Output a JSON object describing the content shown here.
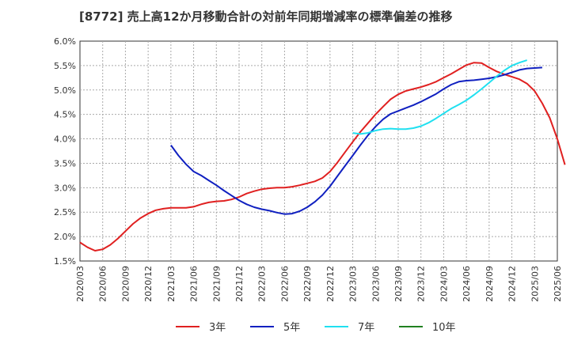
{
  "chart_data": {
    "type": "line",
    "title": "[8772]  売上高12か月移動合計の対前年同期増減率の標準偏差の推移",
    "xlabel": "",
    "ylabel": "",
    "ylim": [
      1.5,
      6.0
    ],
    "yticks": [
      "6.0%",
      "5.5%",
      "5.0%",
      "4.5%",
      "4.0%",
      "3.5%",
      "3.0%",
      "2.5%",
      "2.0%",
      "1.5%"
    ],
    "xticks": [
      "2020/03",
      "2020/06",
      "2020/09",
      "2020/12",
      "2021/03",
      "2021/06",
      "2021/09",
      "2021/12",
      "2022/03",
      "2022/06",
      "2022/09",
      "2022/12",
      "2023/03",
      "2023/06",
      "2023/09",
      "2023/12",
      "2024/03",
      "2024/06",
      "2024/09",
      "2024/12",
      "2025/03",
      "2025/06"
    ],
    "grid": true,
    "legend_position": "bottom",
    "series": [
      {
        "name": "3年",
        "color": "#e02020",
        "values": [
          1.88,
          1.78,
          1.71,
          1.74,
          1.83,
          1.96,
          2.11,
          2.26,
          2.38,
          2.47,
          2.54,
          2.57,
          2.59,
          2.59,
          2.59,
          2.61,
          2.66,
          2.7,
          2.72,
          2.73,
          2.76,
          2.81,
          2.88,
          2.93,
          2.97,
          2.99,
          3.0,
          3.0,
          3.02,
          3.05,
          3.09,
          3.13,
          3.2,
          3.33,
          3.52,
          3.73,
          3.94,
          4.14,
          4.32,
          4.5,
          4.66,
          4.81,
          4.91,
          4.98,
          5.02,
          5.06,
          5.11,
          5.17,
          5.25,
          5.33,
          5.42,
          5.51,
          5.56,
          5.55,
          5.46,
          5.38,
          5.32,
          5.27,
          5.22,
          5.13,
          4.98,
          4.73,
          4.43,
          4.0,
          3.47
        ],
        "start": "2020/03"
      },
      {
        "name": "5年",
        "color": "#1020c0",
        "values": [
          3.87,
          3.66,
          3.48,
          3.33,
          3.25,
          3.15,
          3.05,
          2.94,
          2.84,
          2.74,
          2.66,
          2.6,
          2.56,
          2.53,
          2.49,
          2.46,
          2.47,
          2.52,
          2.6,
          2.71,
          2.85,
          3.03,
          3.24,
          3.45,
          3.66,
          3.87,
          4.07,
          4.25,
          4.4,
          4.51,
          4.57,
          4.63,
          4.69,
          4.76,
          4.84,
          4.92,
          5.02,
          5.11,
          5.17,
          5.19,
          5.2,
          5.22,
          5.24,
          5.27,
          5.31,
          5.36,
          5.41,
          5.44,
          5.45,
          5.46
        ],
        "start": "2021/03"
      },
      {
        "name": "7年",
        "color": "#20e0f0",
        "values": [
          4.12,
          4.1,
          4.12,
          4.17,
          4.2,
          4.21,
          4.2,
          4.2,
          4.22,
          4.26,
          4.33,
          4.42,
          4.52,
          4.62,
          4.7,
          4.79,
          4.9,
          5.02,
          5.15,
          5.28,
          5.4,
          5.5,
          5.56,
          5.61
        ],
        "start": "2023/03"
      },
      {
        "name": "10年",
        "color": "#208020",
        "values": [],
        "start": ""
      }
    ]
  }
}
